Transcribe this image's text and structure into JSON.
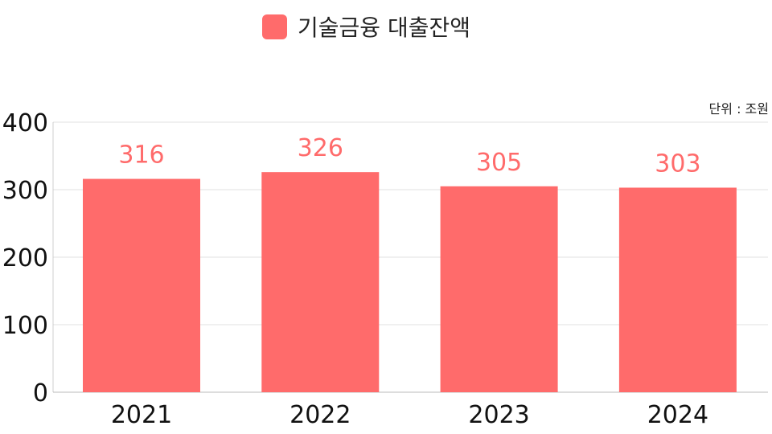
{
  "chart_data": {
    "type": "bar",
    "title": "",
    "categories": [
      "2021",
      "2022",
      "2023",
      "2024"
    ],
    "series": [
      {
        "name": "기술금융 대출잔액",
        "values": [
          316,
          326,
          305,
          303
        ],
        "color": "#FF6B6B"
      }
    ],
    "data_labels": [
      "316",
      "326",
      "305",
      "303"
    ],
    "unit_note": "단위 : 조원",
    "xlabel": "",
    "ylabel": "",
    "ylim": [
      0,
      400
    ],
    "yticks": [
      0,
      100,
      200,
      300,
      400
    ],
    "grid": true,
    "legend_position": "top-center",
    "label_color": "#FF6B6B"
  }
}
